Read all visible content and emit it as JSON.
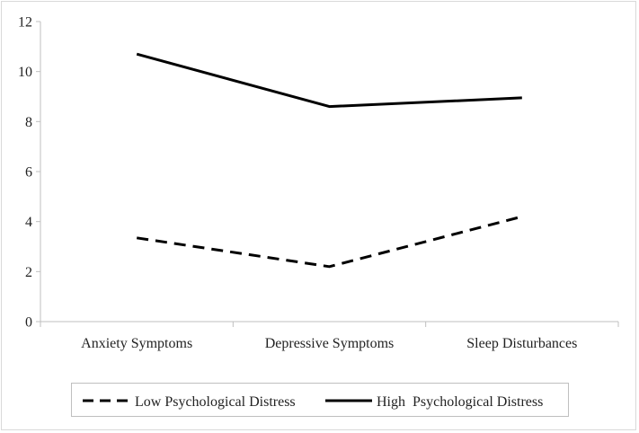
{
  "chart_data": {
    "type": "line",
    "categories": [
      "Anxiety Symptoms",
      "Depressive Symptoms",
      "Sleep Disturbances"
    ],
    "series": [
      {
        "name": "Low Psychological Distress",
        "values": [
          3.35,
          2.2,
          4.2
        ],
        "style": "dashed",
        "color": "#000000"
      },
      {
        "name": "High  Psychological Distress",
        "values": [
          10.7,
          8.6,
          8.95
        ],
        "style": "solid",
        "color": "#000000"
      }
    ],
    "title": "",
    "xlabel": "",
    "ylabel": "",
    "ylim": [
      0,
      12
    ],
    "yticks": [
      0,
      2,
      4,
      6,
      8,
      10,
      12
    ],
    "ytick_labels": [
      "0",
      "2",
      "4",
      "6",
      "8",
      "10",
      "12"
    ],
    "grid": false,
    "legend_position": "bottom"
  }
}
